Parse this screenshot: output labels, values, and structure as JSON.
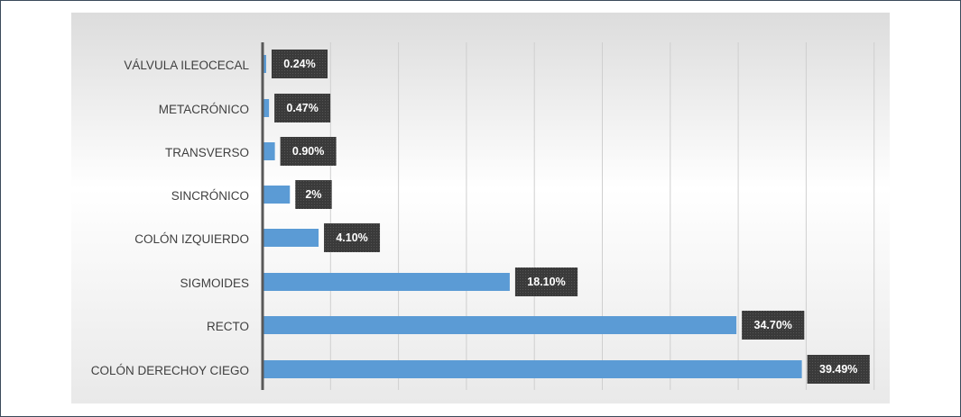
{
  "chart_data": {
    "type": "bar",
    "orientation": "horizontal",
    "categories": [
      "VÁLVULA ILEOCECAL",
      "METACRÓNICO",
      "TRANSVERSO",
      "SINCRÓNICO",
      "COLÓN IZQUIERDO",
      "SIGMOIDES",
      "RECTO",
      "COLÓN DERECHOY CIEGO"
    ],
    "values": [
      0.24,
      0.47,
      0.9,
      2,
      4.1,
      18.1,
      34.7,
      39.49
    ],
    "data_labels": [
      "0.24%",
      "0.47%",
      "0.90%",
      "2%",
      "4.10%",
      "18.10%",
      "34.70%",
      "39.49%"
    ],
    "xlim": [
      0,
      45
    ],
    "grid": true,
    "colors": {
      "bar": "#5b9bd5",
      "label_box": "#3a3a3a",
      "label_text": "#ffffff",
      "axis": "#595959",
      "gridline": "#cfcfcf",
      "category_text": "#3f3f3f"
    },
    "title": "",
    "xlabel": "",
    "ylabel": ""
  }
}
